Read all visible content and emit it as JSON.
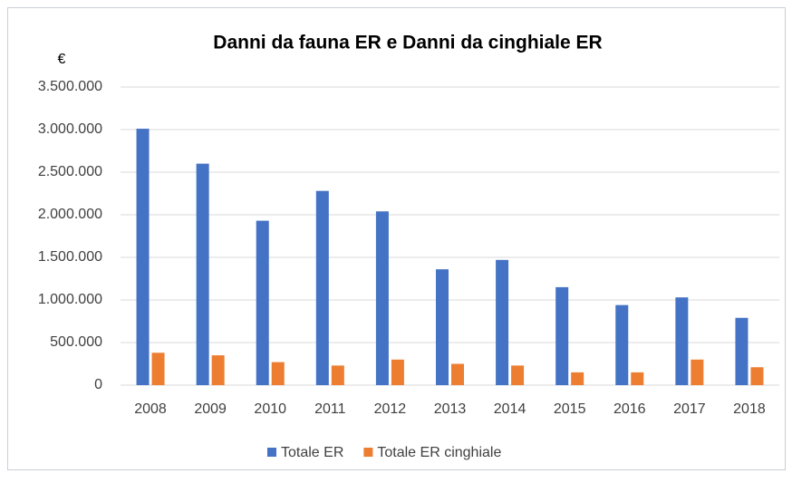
{
  "chart_data": {
    "type": "bar",
    "title": "Danni da fauna ER e Danni da cinghiale ER",
    "ylabel": "€",
    "categories": [
      "2008",
      "2009",
      "2010",
      "2011",
      "2012",
      "2013",
      "2014",
      "2015",
      "2016",
      "2017",
      "2018"
    ],
    "series": [
      {
        "name": "Totale ER",
        "color": "#4472c4",
        "values": [
          3010000,
          2600000,
          1930000,
          2280000,
          2040000,
          1360000,
          1470000,
          1150000,
          940000,
          1030000,
          790000
        ]
      },
      {
        "name": "Totale ER cinghiale",
        "color": "#ed7d31",
        "values": [
          380000,
          350000,
          270000,
          230000,
          300000,
          250000,
          230000,
          150000,
          150000,
          300000,
          210000
        ]
      }
    ],
    "ylim": [
      0,
      3500000
    ],
    "yticks": [
      0,
      {
        "value": 500000,
        "label": "500.000"
      },
      {
        "value": 1000000,
        "label": "1.000.000"
      },
      {
        "value": 1500000,
        "label": "1.500.000"
      },
      {
        "value": 2000000,
        "label": "2.000.000"
      },
      {
        "value": 2500000,
        "label": "2.500.000"
      },
      {
        "value": 3000000,
        "label": "3.000.000"
      },
      {
        "value": 3500000,
        "label": "3.500.000"
      }
    ],
    "grid": true,
    "legend": "bottom"
  }
}
